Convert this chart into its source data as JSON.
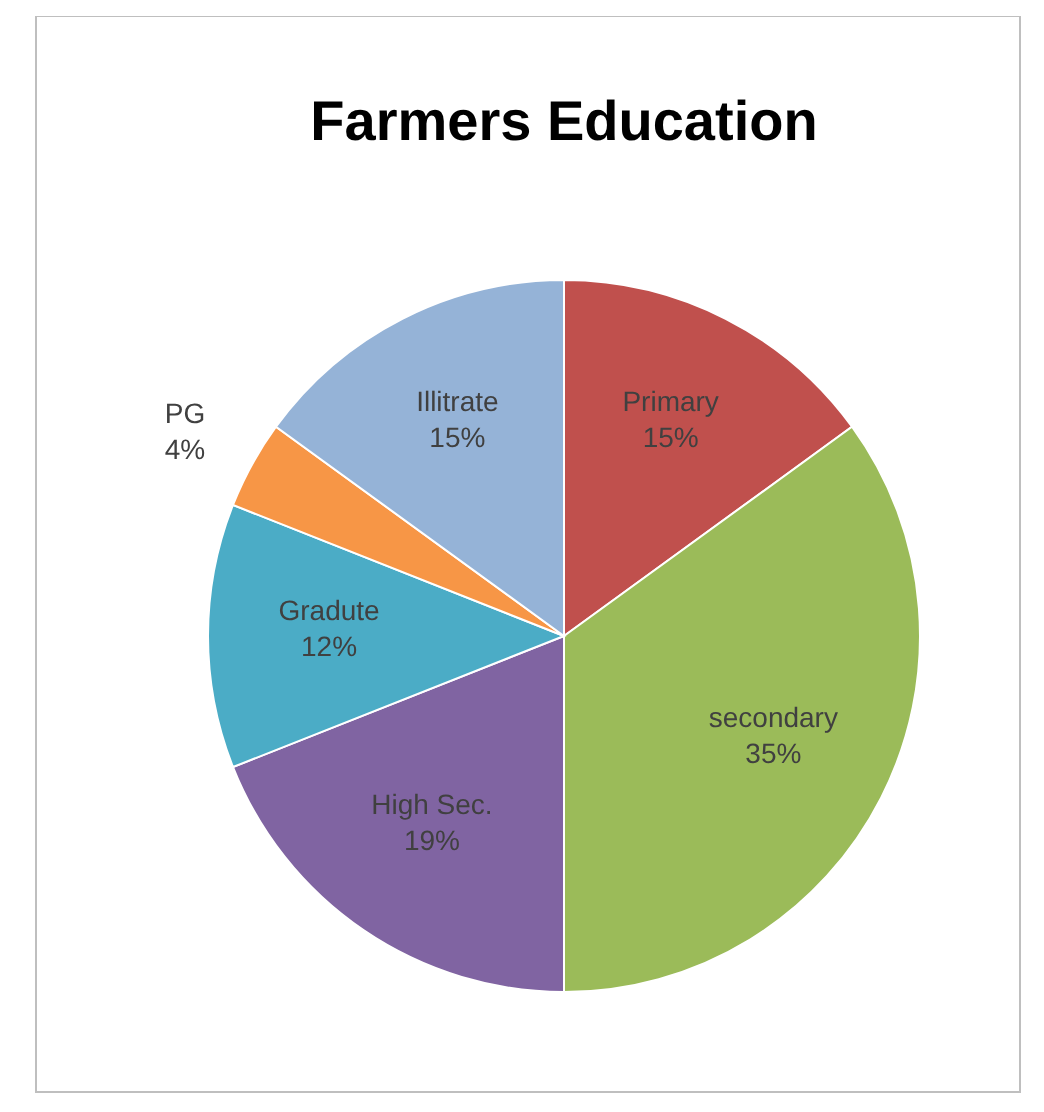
{
  "chart_data": {
    "type": "pie",
    "title": "Farmers Education",
    "categories": [
      "Primary",
      "secondary",
      "High Sec.",
      "Gradute",
      "PG",
      "Illitrate"
    ],
    "values": [
      15,
      35,
      19,
      12,
      4,
      15
    ],
    "value_labels": [
      "15%",
      "35%",
      "19%",
      "12%",
      "4%",
      "15%"
    ],
    "colors": [
      "#c0504d",
      "#9bbb59",
      "#8064a2",
      "#4bacc6",
      "#f79646",
      "#95b3d7"
    ]
  }
}
